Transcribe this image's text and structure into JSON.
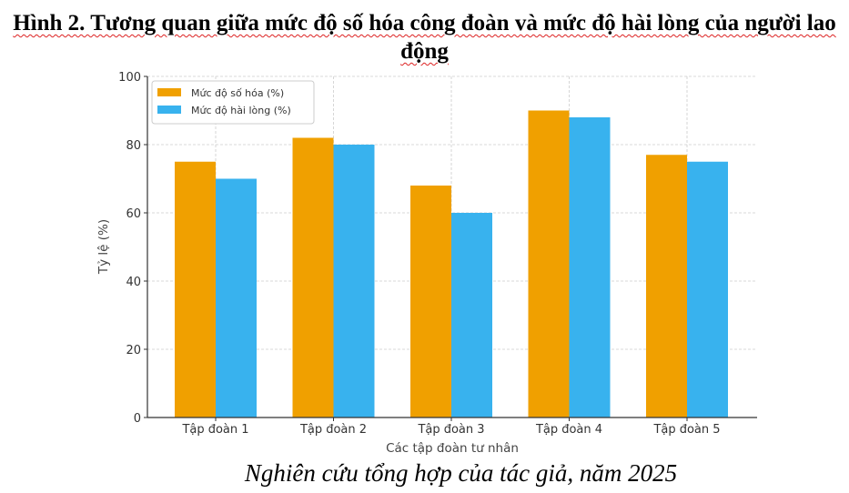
{
  "heading": "Hình 2. Tương quan giữa mức độ số hóa công đoàn và mức độ hài lòng của người lao động",
  "source": "Nghiên cứu tổng hợp của tác giả, năm 2025",
  "chart_data": {
    "type": "bar",
    "title": "",
    "xlabel": "Các tập đoàn tư nhân",
    "ylabel": "Tỷ lệ (%)",
    "ylim": [
      0,
      100
    ],
    "yticks": [
      0,
      20,
      40,
      60,
      80,
      100
    ],
    "grid": true,
    "legend_position": "top-left",
    "categories": [
      "Tập đoàn 1",
      "Tập đoàn 2",
      "Tập đoàn 3",
      "Tập đoàn 4",
      "Tập đoàn 5"
    ],
    "series": [
      {
        "name": "Mức độ số hóa (%)",
        "color": "#f0a000",
        "values": [
          75,
          82,
          68,
          90,
          77
        ]
      },
      {
        "name": "Mức độ hài lòng (%)",
        "color": "#38b2ee",
        "values": [
          70,
          80,
          60,
          88,
          75
        ]
      }
    ]
  }
}
